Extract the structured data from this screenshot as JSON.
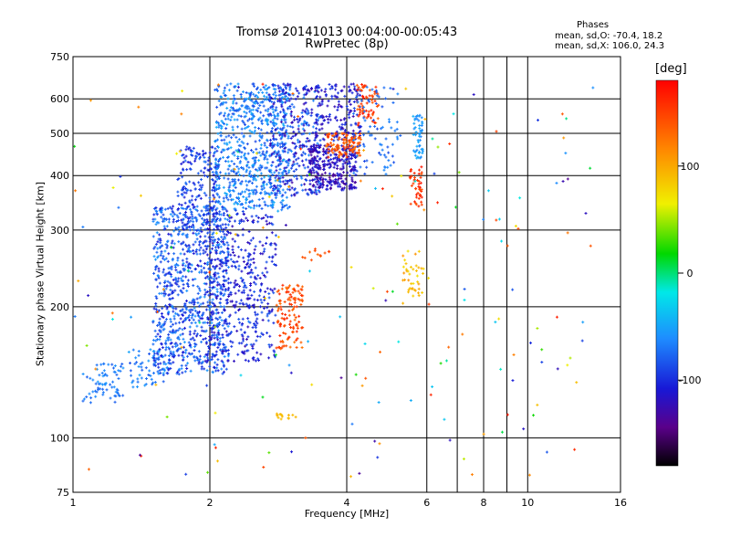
{
  "chart_data": {
    "type": "scatter",
    "title": "Tromsø 20141013 00:04:00-00:05:43",
    "subtitle": "RwPretec (8p)",
    "xlabel": "Frequency [MHz]",
    "ylabel": "Stationary phase Virtual Height [km]",
    "x_scale": "log",
    "y_scale": "log",
    "xlim": [
      1,
      16
    ],
    "ylim": [
      75,
      750
    ],
    "x_ticks": [
      1,
      2,
      4,
      6,
      8,
      10,
      16
    ],
    "x_tick_labels": [
      "1",
      "2",
      "4",
      "6",
      "8",
      "10",
      "16"
    ],
    "x_gridlines": [
      2,
      4,
      6,
      7,
      8,
      9,
      10
    ],
    "y_ticks": [
      75,
      100,
      200,
      300,
      400,
      500,
      600,
      750
    ],
    "y_tick_labels": [
      "75",
      "100",
      "200",
      "300",
      "400",
      "500",
      "600",
      "750"
    ],
    "y_gridlines": [
      100,
      200,
      300,
      400,
      500,
      600
    ],
    "grid": true,
    "colorbar": {
      "label": "[deg]",
      "range": [
        -180,
        180
      ],
      "ticks": [
        100,
        0,
        -100
      ],
      "tick_labels": [
        "100",
        "0",
        "-100"
      ]
    },
    "annotation": {
      "title": "Phases",
      "line_o": "mean, sd,O: -70.4, 18.2",
      "line_x": "mean, sd,X: 106.0, 24.3"
    },
    "clusters": [
      {
        "fmin": 1.05,
        "fmax": 1.3,
        "hmin": 120,
        "hmax": 148,
        "phase": [
          -80,
          -55
        ],
        "n": 70
      },
      {
        "fmin": 1.3,
        "fmax": 1.6,
        "hmin": 130,
        "hmax": 160,
        "phase": [
          -85,
          -50
        ],
        "n": 50
      },
      {
        "fmin": 1.5,
        "fmax": 2.2,
        "hmin": 140,
        "hmax": 340,
        "phase": [
          -110,
          -55
        ],
        "n": 900
      },
      {
        "fmin": 1.7,
        "fmax": 2.1,
        "hmin": 300,
        "hmax": 470,
        "phase": [
          -110,
          -70
        ],
        "n": 200
      },
      {
        "fmin": 1.95,
        "fmax": 2.8,
        "hmin": 150,
        "hmax": 330,
        "phase": [
          -125,
          -80
        ],
        "n": 450
      },
      {
        "fmin": 2.05,
        "fmax": 3.0,
        "hmin": 330,
        "hmax": 650,
        "phase": [
          -90,
          -45
        ],
        "n": 700
      },
      {
        "fmin": 2.7,
        "fmax": 3.5,
        "hmin": 360,
        "hmax": 650,
        "phase": [
          -130,
          -60
        ],
        "n": 350
      },
      {
        "fmin": 3.3,
        "fmax": 4.2,
        "hmin": 370,
        "hmax": 470,
        "phase": [
          -140,
          -100
        ],
        "n": 300
      },
      {
        "fmin": 3.4,
        "fmax": 4.3,
        "hmin": 480,
        "hmax": 650,
        "phase": [
          -130,
          -90
        ],
        "n": 150
      },
      {
        "fmin": 3.6,
        "fmax": 4.3,
        "hmin": 440,
        "hmax": 500,
        "phase": [
          120,
          160
        ],
        "n": 110
      },
      {
        "fmin": 4.2,
        "fmax": 4.7,
        "hmin": 520,
        "hmax": 650,
        "phase": [
          130,
          170
        ],
        "n": 70
      },
      {
        "fmin": 4.1,
        "fmax": 5.3,
        "hmin": 400,
        "hmax": 640,
        "phase": [
          -90,
          -60
        ],
        "n": 80
      },
      {
        "fmin": 5.5,
        "fmax": 5.85,
        "hmin": 340,
        "hmax": 420,
        "phase": [
          140,
          170
        ],
        "n": 45
      },
      {
        "fmin": 5.6,
        "fmax": 5.9,
        "hmin": 430,
        "hmax": 560,
        "phase": [
          -65,
          -45
        ],
        "n": 50
      },
      {
        "fmin": 2.8,
        "fmax": 3.2,
        "hmin": 160,
        "hmax": 225,
        "phase": [
          125,
          165
        ],
        "n": 120
      },
      {
        "fmin": 2.75,
        "fmax": 3.1,
        "hmin": 110,
        "hmax": 114,
        "phase": [
          85,
          100
        ],
        "n": 14
      },
      {
        "fmin": 5.3,
        "fmax": 5.9,
        "hmin": 210,
        "hmax": 270,
        "phase": [
          70,
          110
        ],
        "n": 40
      },
      {
        "fmin": 3.1,
        "fmax": 3.7,
        "hmin": 255,
        "hmax": 275,
        "phase": [
          130,
          160
        ],
        "n": 12
      },
      {
        "fmin": 1.0,
        "fmax": 14.0,
        "hmin": 80,
        "hmax": 650,
        "phase": [
          -140,
          170
        ],
        "n": 190
      }
    ]
  }
}
